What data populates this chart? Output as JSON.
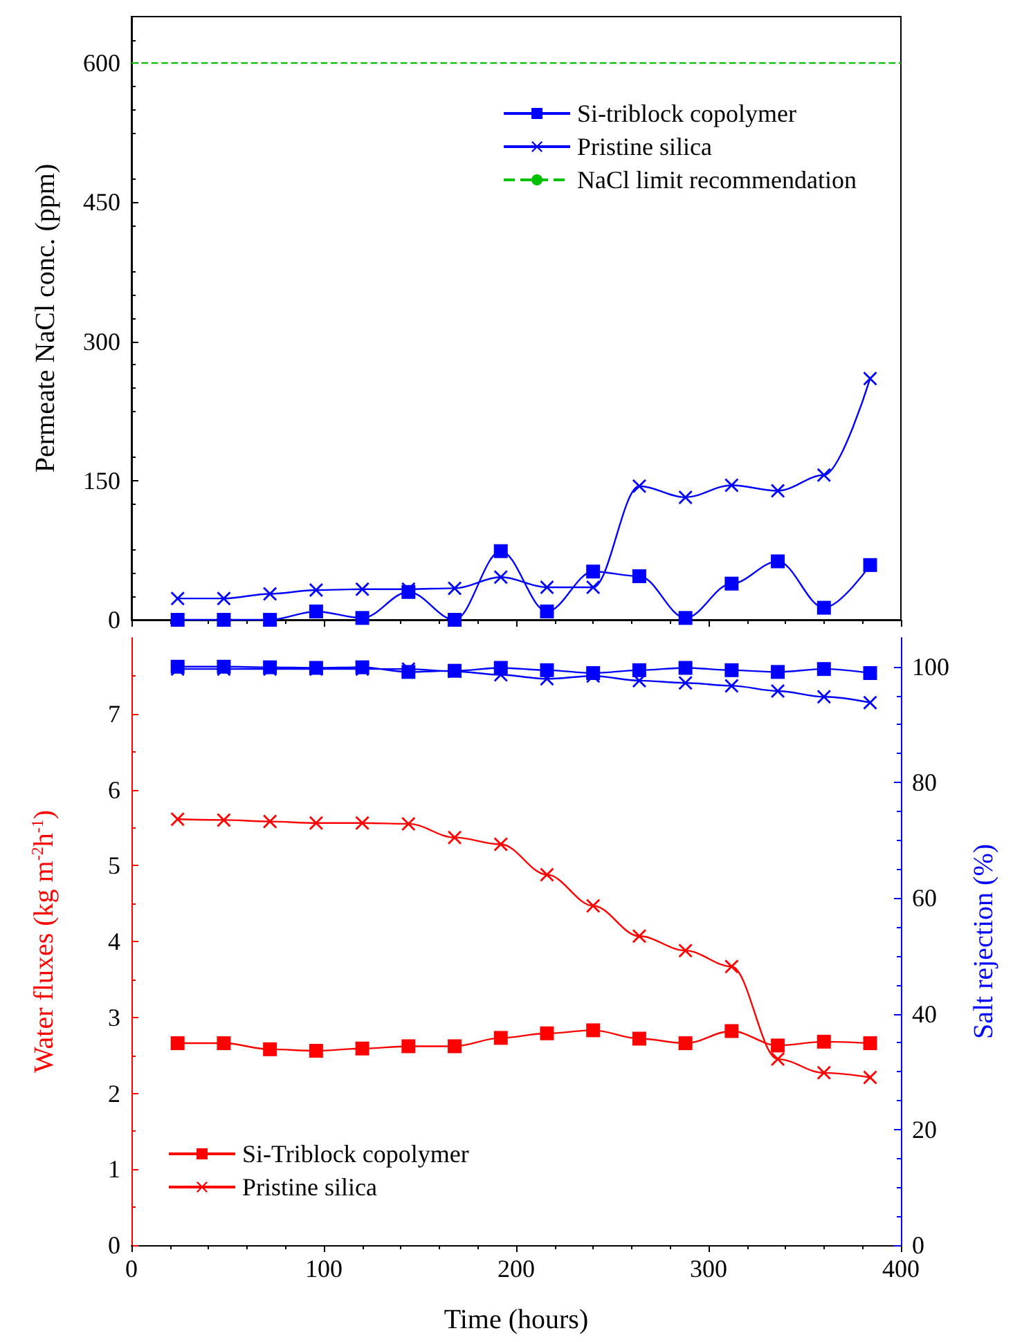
{
  "chart_data": [
    {
      "type": "line",
      "ylabel": "Permeate NaCl conc. (ppm)",
      "x": [
        24,
        48,
        72,
        96,
        120,
        144,
        168,
        192,
        216,
        240,
        264,
        288,
        312,
        336,
        360,
        384
      ],
      "series": [
        {
          "name": "Si-triblock copolymer",
          "color": "#0000ff",
          "marker": "square",
          "values": [
            0,
            0,
            0,
            9,
            2,
            30,
            0,
            74,
            9,
            52,
            47,
            2,
            39,
            63,
            13,
            59
          ]
        },
        {
          "name": "Pristine silica",
          "color": "#0000ff",
          "marker": "cross",
          "values": [
            23,
            23,
            28,
            32,
            33,
            33,
            34,
            46,
            35,
            35,
            144,
            132,
            145,
            139,
            156,
            260
          ]
        }
      ],
      "ref_lines": [
        {
          "axis": "y",
          "value": 600,
          "label": "NaCl limit recommendation",
          "color": "#00c000",
          "line_style": "dashed"
        }
      ],
      "xlim": [
        0,
        400
      ],
      "xticks": [
        0,
        100,
        200,
        300,
        400
      ],
      "ylim": [
        0,
        650
      ],
      "yticks": [
        0,
        150,
        300,
        450,
        600
      ],
      "tick_labels": "y",
      "legend": "top right",
      "line_style": "solid"
    },
    {
      "type": "line",
      "xlabel": "Time (hours)",
      "ylabel": "Water fluxes (kg m$^{-2}$h$^{-1}$)",
      "y2label": "Salt rejection (%)",
      "x": [
        24,
        48,
        72,
        96,
        120,
        144,
        168,
        192,
        216,
        240,
        264,
        288,
        312,
        336,
        360,
        384
      ],
      "series": [
        {
          "name": "Si-Triblock copolymer",
          "color": "#ff0000",
          "marker": "square",
          "values": [
            2.66,
            2.66,
            2.58,
            2.56,
            2.59,
            2.62,
            2.62,
            2.73,
            2.79,
            2.83,
            2.72,
            2.66,
            2.82,
            2.63,
            2.68,
            2.66
          ]
        },
        {
          "name": "Pristine silica",
          "color": "#ff0000",
          "marker": "cross",
          "values": [
            5.61,
            5.6,
            5.58,
            5.56,
            5.56,
            5.55,
            5.37,
            5.28,
            4.88,
            4.47,
            4.07,
            3.88,
            3.67,
            2.45,
            2.27,
            2.21
          ]
        },
        {
          "color": "#0000ff",
          "marker": "square",
          "axis": "y2",
          "values": [
            100,
            100,
            99.9,
            99.8,
            99.9,
            99.1,
            99.3,
            99.8,
            99.4,
            98.9,
            99.4,
            99.8,
            99.4,
            99.1,
            99.6,
            98.9
          ]
        },
        {
          "color": "#0000ff",
          "marker": "cross",
          "axis": "y2",
          "values": [
            99.6,
            99.6,
            99.6,
            99.6,
            99.6,
            99.6,
            99.2,
            98.6,
            97.9,
            98.4,
            97.6,
            97.2,
            96.7,
            95.8,
            94.8,
            93.8
          ]
        }
      ],
      "xlim": [
        0,
        400
      ],
      "xticks": [
        0,
        100,
        200,
        300,
        400
      ],
      "ylim": [
        0,
        8
      ],
      "yticks": [
        0,
        1,
        2,
        3,
        4,
        5,
        6,
        7
      ],
      "y2lim": [
        0,
        105
      ],
      "y2ticks": [
        0,
        20,
        40,
        60,
        80,
        100
      ],
      "legend": "bottom left",
      "line_style": "solid"
    }
  ]
}
